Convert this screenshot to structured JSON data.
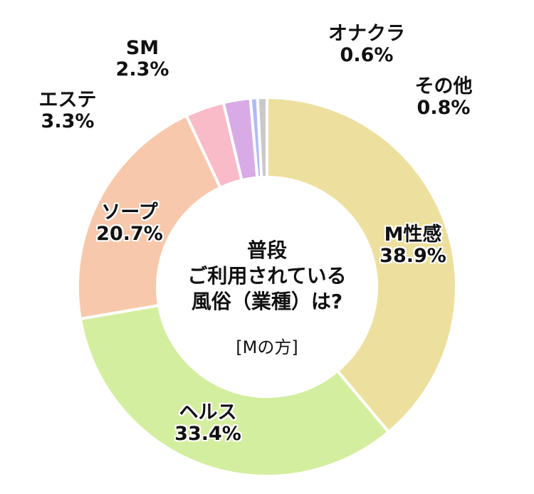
{
  "chart_data": {
    "type": "pie",
    "title_lines": [
      "普段",
      "ご利用されている",
      "風俗（業種）は?"
    ],
    "subtitle": "[Mの方]",
    "slices": [
      {
        "label": "M性感",
        "value": 38.9,
        "value_text": "38.9%",
        "color": "#ede09f"
      },
      {
        "label": "ヘルス",
        "value": 33.4,
        "value_text": "33.4%",
        "color": "#d4ee9f"
      },
      {
        "label": "ソープ",
        "value": 20.7,
        "value_text": "20.7%",
        "color": "#f7c8ab"
      },
      {
        "label": "エステ",
        "value": 3.3,
        "value_text": "3.3%",
        "color": "#fabbc8"
      },
      {
        "label": "SM",
        "value": 2.3,
        "value_text": "2.3%",
        "color": "#d9abe6"
      },
      {
        "label": "オナクラ",
        "value": 0.6,
        "value_text": "0.6%",
        "color": "#b0baf2"
      },
      {
        "label": "その他",
        "value": 0.8,
        "value_text": "0.8%",
        "color": "#c9c9c9"
      }
    ]
  }
}
